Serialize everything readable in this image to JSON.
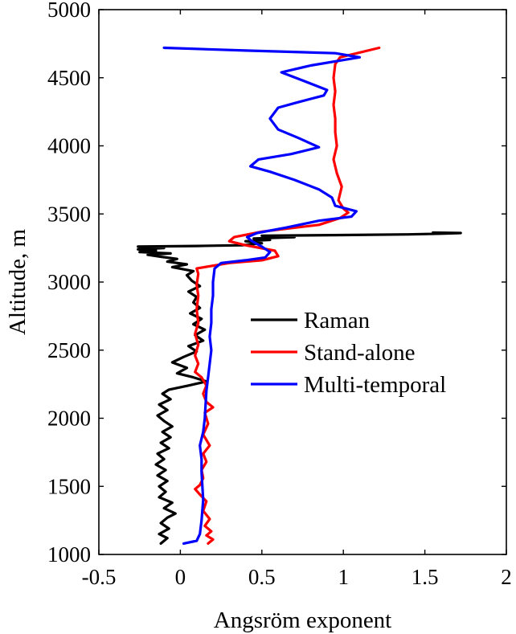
{
  "chart_data": {
    "type": "line",
    "title": "",
    "xlabel": "Angsröm exponent",
    "ylabel": "Altitude, m",
    "xlim": [
      -0.5,
      2
    ],
    "ylim": [
      1000,
      5000
    ],
    "xticks": [
      -0.5,
      0,
      0.5,
      1,
      1.5,
      2
    ],
    "xtick_labels": [
      "-0.5",
      "0",
      "0.5",
      "1",
      "1.5",
      "2"
    ],
    "yticks": [
      1000,
      1500,
      2000,
      2500,
      3000,
      3500,
      4000,
      4500,
      5000
    ],
    "ytick_labels": [
      "1000",
      "1500",
      "2000",
      "2500",
      "3000",
      "3500",
      "4000",
      "4500",
      "5000"
    ],
    "grid": false,
    "legend_position": "center-right",
    "series": [
      {
        "name": "Raman",
        "color": "#000000",
        "points": [
          [
            -0.12,
            1080
          ],
          [
            -0.08,
            1120
          ],
          [
            -0.13,
            1150
          ],
          [
            -0.07,
            1190
          ],
          [
            -0.12,
            1230
          ],
          [
            -0.08,
            1270
          ],
          [
            -0.03,
            1300
          ],
          [
            -0.1,
            1340
          ],
          [
            -0.05,
            1380
          ],
          [
            -0.13,
            1420
          ],
          [
            -0.09,
            1460
          ],
          [
            -0.13,
            1500
          ],
          [
            -0.08,
            1540
          ],
          [
            -0.14,
            1580
          ],
          [
            -0.09,
            1620
          ],
          [
            -0.15,
            1660
          ],
          [
            -0.1,
            1700
          ],
          [
            -0.14,
            1740
          ],
          [
            -0.07,
            1780
          ],
          [
            -0.12,
            1820
          ],
          [
            -0.06,
            1860
          ],
          [
            -0.11,
            1900
          ],
          [
            -0.05,
            1940
          ],
          [
            -0.1,
            1980
          ],
          [
            -0.14,
            2020
          ],
          [
            -0.08,
            2060
          ],
          [
            -0.13,
            2100
          ],
          [
            -0.06,
            2140
          ],
          [
            -0.11,
            2180
          ],
          [
            -0.07,
            2210
          ],
          [
            0.05,
            2240
          ],
          [
            0.16,
            2270
          ],
          [
            0.08,
            2300
          ],
          [
            -0.02,
            2330
          ],
          [
            0.04,
            2370
          ],
          [
            -0.05,
            2410
          ],
          [
            0.02,
            2450
          ],
          [
            0.1,
            2490
          ],
          [
            0.05,
            2530
          ],
          [
            0.14,
            2570
          ],
          [
            0.09,
            2610
          ],
          [
            0.15,
            2650
          ],
          [
            0.08,
            2690
          ],
          [
            0.13,
            2730
          ],
          [
            0.06,
            2770
          ],
          [
            0.12,
            2810
          ],
          [
            0.08,
            2850
          ],
          [
            0.1,
            2890
          ],
          [
            0.05,
            2930
          ],
          [
            0.12,
            2970
          ],
          [
            0.07,
            3010
          ],
          [
            0.04,
            3050
          ],
          [
            0.08,
            3080
          ],
          [
            -0.05,
            3110
          ],
          [
            0.04,
            3130
          ],
          [
            -0.08,
            3150
          ],
          [
            -0.02,
            3170
          ],
          [
            -0.12,
            3185
          ],
          [
            -0.2,
            3200
          ],
          [
            -0.06,
            3210
          ],
          [
            -0.25,
            3220
          ],
          [
            -0.15,
            3230
          ],
          [
            -0.26,
            3240
          ],
          [
            -0.1,
            3250
          ],
          [
            -0.26,
            3260
          ],
          [
            0.1,
            3265
          ],
          [
            0.38,
            3270
          ],
          [
            0.5,
            3285
          ],
          [
            0.4,
            3300
          ],
          [
            0.55,
            3310
          ],
          [
            0.45,
            3320
          ],
          [
            0.7,
            3330
          ],
          [
            0.5,
            3340
          ],
          [
            1.0,
            3345
          ],
          [
            1.4,
            3350
          ],
          [
            1.6,
            3355
          ],
          [
            1.72,
            3360
          ],
          [
            1.55,
            3363
          ]
        ]
      },
      {
        "name": "Stand-alone",
        "color": "#ff0000",
        "points": [
          [
            0.17,
            1080
          ],
          [
            0.2,
            1110
          ],
          [
            0.16,
            1140
          ],
          [
            0.19,
            1170
          ],
          [
            0.15,
            1210
          ],
          [
            0.18,
            1260
          ],
          [
            0.14,
            1320
          ],
          [
            0.16,
            1390
          ],
          [
            0.12,
            1440
          ],
          [
            0.09,
            1480
          ],
          [
            0.12,
            1510
          ],
          [
            0.14,
            1560
          ],
          [
            0.13,
            1620
          ],
          [
            0.16,
            1680
          ],
          [
            0.14,
            1740
          ],
          [
            0.18,
            1800
          ],
          [
            0.14,
            1880
          ],
          [
            0.17,
            1960
          ],
          [
            0.15,
            2040
          ],
          [
            0.2,
            2080
          ],
          [
            0.16,
            2120
          ],
          [
            0.14,
            2180
          ],
          [
            0.16,
            2240
          ],
          [
            0.13,
            2300
          ],
          [
            0.09,
            2340
          ],
          [
            0.11,
            2400
          ],
          [
            0.09,
            2460
          ],
          [
            0.11,
            2540
          ],
          [
            0.09,
            2620
          ],
          [
            0.11,
            2700
          ],
          [
            0.1,
            2800
          ],
          [
            0.11,
            2900
          ],
          [
            0.1,
            2980
          ],
          [
            0.11,
            3060
          ],
          [
            0.1,
            3100
          ],
          [
            0.3,
            3140
          ],
          [
            0.5,
            3160
          ],
          [
            0.6,
            3190
          ],
          [
            0.58,
            3230
          ],
          [
            0.4,
            3270
          ],
          [
            0.3,
            3300
          ],
          [
            0.33,
            3330
          ],
          [
            0.5,
            3370
          ],
          [
            0.85,
            3420
          ],
          [
            0.98,
            3470
          ],
          [
            1.03,
            3510
          ],
          [
            1.0,
            3540
          ],
          [
            0.97,
            3600
          ],
          [
            0.99,
            3700
          ],
          [
            0.96,
            3800
          ],
          [
            0.94,
            3900
          ],
          [
            0.96,
            4000
          ],
          [
            0.95,
            4100
          ],
          [
            0.95,
            4200
          ],
          [
            0.94,
            4300
          ],
          [
            0.95,
            4400
          ],
          [
            0.94,
            4500
          ],
          [
            0.95,
            4600
          ],
          [
            0.98,
            4650
          ],
          [
            1.22,
            4720
          ]
        ]
      },
      {
        "name": "Multi-temporal",
        "color": "#0000ff",
        "points": [
          [
            0.02,
            1080
          ],
          [
            0.1,
            1100
          ],
          [
            0.12,
            1150
          ],
          [
            0.13,
            1250
          ],
          [
            0.14,
            1400
          ],
          [
            0.13,
            1600
          ],
          [
            0.13,
            1700
          ],
          [
            0.12,
            1800
          ],
          [
            0.14,
            1900
          ],
          [
            0.15,
            2000
          ],
          [
            0.16,
            2200
          ],
          [
            0.17,
            2300
          ],
          [
            0.18,
            2400
          ],
          [
            0.19,
            2500
          ],
          [
            0.18,
            2600
          ],
          [
            0.19,
            2700
          ],
          [
            0.19,
            2800
          ],
          [
            0.2,
            2900
          ],
          [
            0.2,
            3000
          ],
          [
            0.21,
            3100
          ],
          [
            0.25,
            3140
          ],
          [
            0.4,
            3160
          ],
          [
            0.52,
            3180
          ],
          [
            0.55,
            3220
          ],
          [
            0.5,
            3260
          ],
          [
            0.44,
            3300
          ],
          [
            0.41,
            3330
          ],
          [
            0.47,
            3360
          ],
          [
            0.65,
            3400
          ],
          [
            0.85,
            3450
          ],
          [
            1.05,
            3480
          ],
          [
            1.08,
            3520
          ],
          [
            0.95,
            3560
          ],
          [
            0.93,
            3620
          ],
          [
            0.85,
            3680
          ],
          [
            0.7,
            3750
          ],
          [
            0.55,
            3810
          ],
          [
            0.43,
            3850
          ],
          [
            0.48,
            3900
          ],
          [
            0.68,
            3940
          ],
          [
            0.85,
            3990
          ],
          [
            0.72,
            4060
          ],
          [
            0.6,
            4120
          ],
          [
            0.55,
            4200
          ],
          [
            0.6,
            4280
          ],
          [
            0.72,
            4320
          ],
          [
            0.88,
            4370
          ],
          [
            0.9,
            4410
          ],
          [
            0.75,
            4480
          ],
          [
            0.62,
            4540
          ],
          [
            0.8,
            4590
          ],
          [
            1.0,
            4630
          ],
          [
            1.1,
            4650
          ],
          [
            0.95,
            4680
          ],
          [
            0.4,
            4700
          ],
          [
            -0.1,
            4720
          ]
        ]
      }
    ]
  }
}
